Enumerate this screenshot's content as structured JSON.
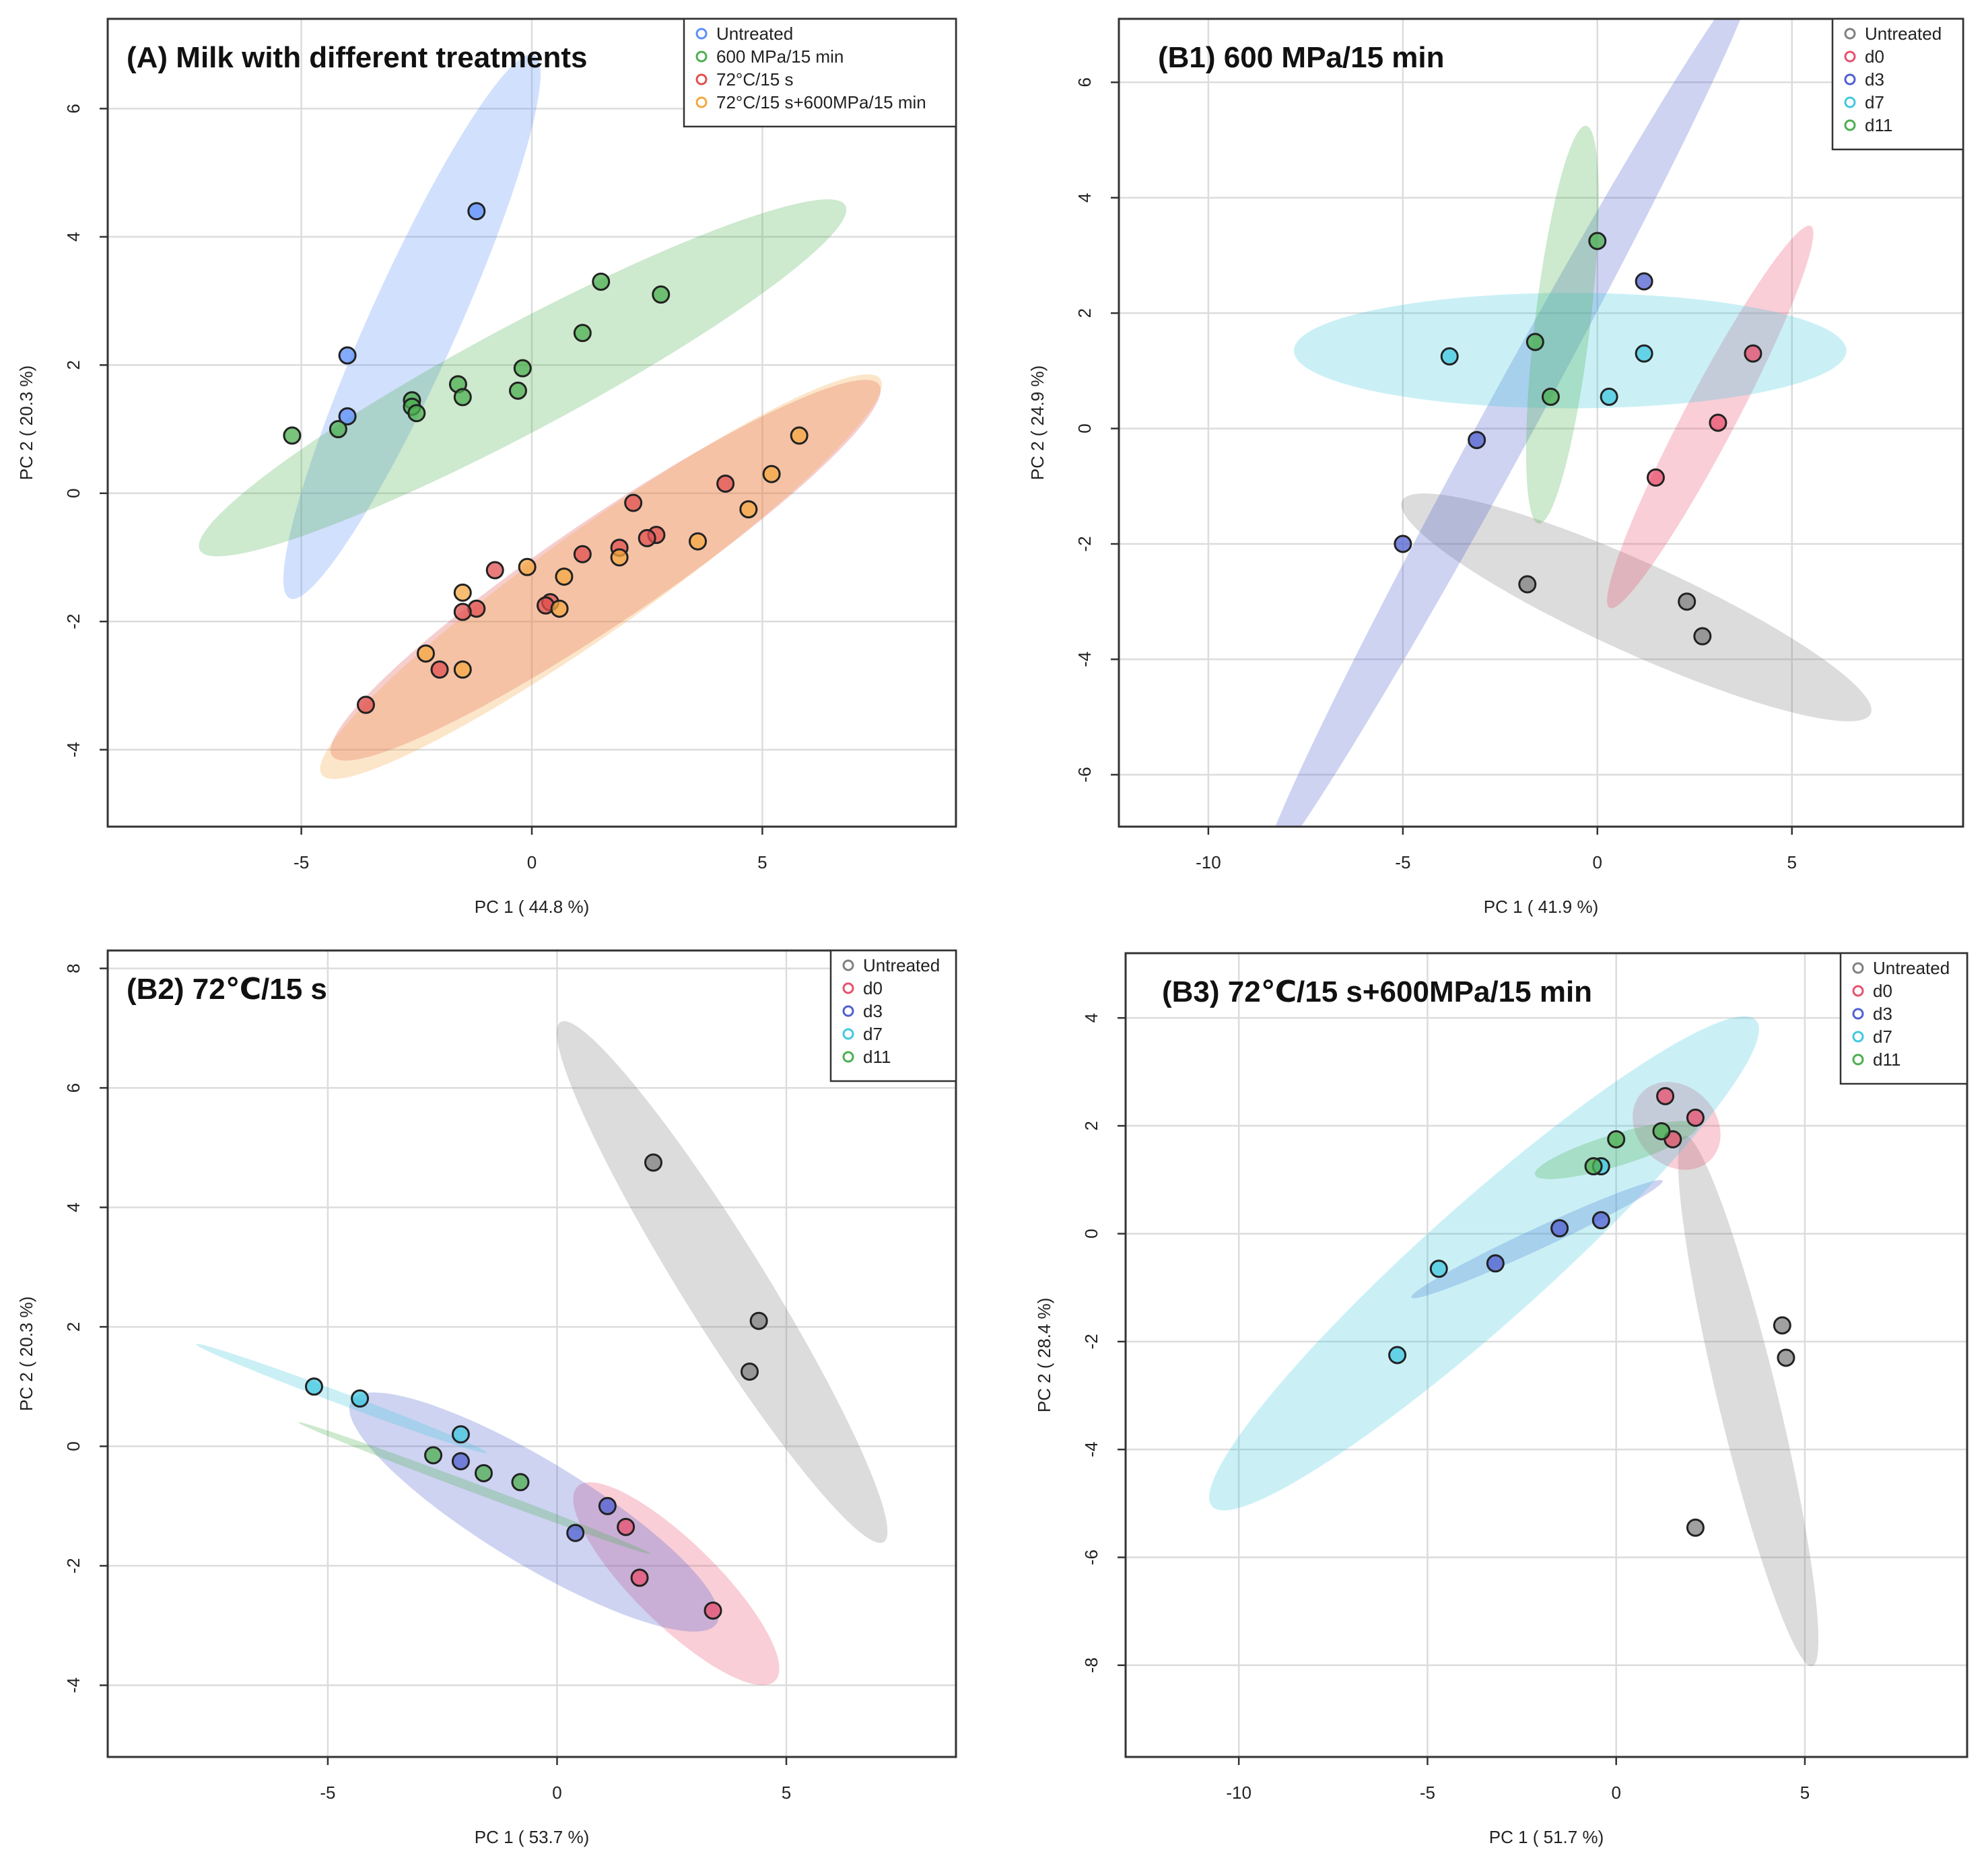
{
  "chart_data": [
    {
      "id": "A",
      "type": "scatter",
      "title": "(A) Milk with different treatments",
      "xlabel": "PC 1 ( 44.8 %)",
      "ylabel": "PC 2 ( 20.3 %)",
      "xlim": [
        -9.2,
        9.2
      ],
      "ylim": [
        -5.2,
        7.4
      ],
      "xticks": [
        -5,
        0,
        5
      ],
      "yticks": [
        -4,
        -2,
        0,
        2,
        4,
        6
      ],
      "grid": true,
      "legend_position": "top-right",
      "series": [
        {
          "name": "Untreated",
          "color": "#5b8ff9",
          "points": [
            [
              -1.2,
              4.4
            ],
            [
              -4.0,
              2.15
            ],
            [
              -4.0,
              1.2
            ]
          ],
          "ellipse": {
            "center": [
              -2.6,
              2.6
            ],
            "angle_deg": 58,
            "rx": 5.0,
            "ry": 0.85
          }
        },
        {
          "name": "600 MPa/15 min",
          "color": "#4caf50",
          "points": [
            [
              1.5,
              3.3
            ],
            [
              2.8,
              3.1
            ],
            [
              1.1,
              2.5
            ],
            [
              -0.2,
              1.95
            ],
            [
              -0.3,
              1.6
            ],
            [
              -1.6,
              1.7
            ],
            [
              -1.5,
              1.5
            ],
            [
              -2.6,
              1.45
            ],
            [
              -2.6,
              1.35
            ],
            [
              -2.5,
              1.25
            ],
            [
              -4.2,
              1.0
            ],
            [
              -5.2,
              0.9
            ]
          ],
          "ellipse": {
            "center": [
              -0.2,
              1.8
            ],
            "angle_deg": 21,
            "rx": 7.5,
            "ry": 0.85
          }
        },
        {
          "name": "72°C/15 s",
          "color": "#e05050",
          "points": [
            [
              4.2,
              0.15
            ],
            [
              2.2,
              -0.15
            ],
            [
              2.7,
              -0.65
            ],
            [
              2.5,
              -0.7
            ],
            [
              1.9,
              -0.85
            ],
            [
              1.1,
              -0.95
            ],
            [
              -0.8,
              -1.2
            ],
            [
              0.4,
              -1.7
            ],
            [
              0.3,
              -1.75
            ],
            [
              -1.2,
              -1.8
            ],
            [
              -1.5,
              -1.85
            ],
            [
              -2.0,
              -2.75
            ],
            [
              -3.6,
              -3.3
            ]
          ],
          "ellipse": {
            "center": [
              1.6,
              -1.2
            ],
            "angle_deg": 26,
            "rx": 6.6,
            "ry": 0.85
          }
        },
        {
          "name": "72°C/15 s+600MPa/15 min",
          "color": "#f4a742",
          "points": [
            [
              5.8,
              0.9
            ],
            [
              5.2,
              0.3
            ],
            [
              4.7,
              -0.25
            ],
            [
              3.6,
              -0.75
            ],
            [
              1.9,
              -1.0
            ],
            [
              -0.1,
              -1.15
            ],
            [
              0.7,
              -1.3
            ],
            [
              -1.5,
              -1.55
            ],
            [
              0.6,
              -1.8
            ],
            [
              -2.3,
              -2.5
            ],
            [
              -1.5,
              -2.75
            ]
          ],
          "ellipse": {
            "center": [
              1.5,
              -1.3
            ],
            "angle_deg": 27,
            "rx": 6.8,
            "ry": 0.85
          }
        }
      ]
    },
    {
      "id": "B1",
      "type": "scatter",
      "title": "(B1) 600  MPa/15 min",
      "xlabel": "PC 1 ( 41.9 %)",
      "ylabel": "PC 2 ( 24.9 %)",
      "xlim": [
        -12.3,
        9.4
      ],
      "ylim": [
        -6.9,
        7.1
      ],
      "xticks": [
        -10,
        -5,
        0,
        5
      ],
      "yticks": [
        -6,
        -4,
        -2,
        0,
        2,
        4,
        6
      ],
      "grid": true,
      "legend_position": "top-right",
      "series": [
        {
          "name": "Untreated",
          "color": "#808080",
          "points": [
            [
              -1.8,
              -2.7
            ],
            [
              2.3,
              -3.0
            ],
            [
              2.7,
              -3.6
            ]
          ],
          "ellipse": {
            "center": [
              1.0,
              -3.1
            ],
            "angle_deg": -17,
            "rx": 6.3,
            "ry": 0.8
          }
        },
        {
          "name": "d0",
          "color": "#e8506e",
          "points": [
            [
              4.0,
              1.3
            ],
            [
              3.1,
              0.1
            ],
            [
              1.5,
              -0.85
            ]
          ],
          "ellipse": {
            "center": [
              2.9,
              0.2
            ],
            "angle_deg": 52,
            "rx": 4.2,
            "ry": 0.55
          }
        },
        {
          "name": "d3",
          "color": "#5060d0",
          "points": [
            [
              1.2,
              2.55
            ],
            [
              -3.1,
              -0.2
            ],
            [
              -5.0,
              -2.0
            ]
          ],
          "ellipse": {
            "center": [
              -2.3,
              0.1
            ],
            "angle_deg": 51,
            "rx": 10.0,
            "ry": 0.55
          }
        },
        {
          "name": "d7",
          "color": "#40c8e0",
          "points": [
            [
              -3.8,
              1.25
            ],
            [
              1.2,
              1.3
            ],
            [
              0.3,
              0.55
            ]
          ],
          "ellipse": {
            "center": [
              -0.7,
              1.35
            ],
            "angle_deg": 0,
            "rx": 7.1,
            "ry": 1.0
          }
        },
        {
          "name": "d11",
          "color": "#4caf50",
          "points": [
            [
              0.0,
              3.25
            ],
            [
              -1.6,
              1.5
            ],
            [
              -1.2,
              0.55
            ]
          ],
          "ellipse": {
            "center": [
              -0.9,
              1.8
            ],
            "angle_deg": 80,
            "rx": 3.5,
            "ry": 0.7
          }
        }
      ]
    },
    {
      "id": "B2",
      "type": "scatter",
      "title": "(B2) 72℃/15  s",
      "xlabel": "PC 1 ( 53.7 %)",
      "ylabel": "PC 2 ( 20.3 %)",
      "xlim": [
        -9.8,
        8.7
      ],
      "ylim": [
        -5.2,
        8.3
      ],
      "xticks": [
        -5,
        0,
        5
      ],
      "yticks": [
        -4,
        -2,
        0,
        2,
        4,
        6,
        8
      ],
      "grid": true,
      "legend_position": "top-right",
      "series": [
        {
          "name": "Untreated",
          "color": "#808080",
          "points": [
            [
              2.1,
              4.75
            ],
            [
              4.4,
              2.1
            ],
            [
              4.2,
              1.25
            ]
          ],
          "ellipse": {
            "center": [
              3.6,
              2.75
            ],
            "angle_deg": -51,
            "rx": 5.6,
            "ry": 0.8
          }
        },
        {
          "name": "d0",
          "color": "#e8506e",
          "points": [
            [
              1.5,
              -1.35
            ],
            [
              1.8,
              -2.2
            ],
            [
              3.4,
              -2.75
            ]
          ],
          "ellipse": {
            "center": [
              2.6,
              -2.3
            ],
            "angle_deg": -37,
            "rx": 2.7,
            "ry": 0.75
          }
        },
        {
          "name": "d3",
          "color": "#5060d0",
          "points": [
            [
              -2.1,
              -0.25
            ],
            [
              1.1,
              -1.0
            ],
            [
              0.4,
              -1.45
            ]
          ],
          "ellipse": {
            "center": [
              -0.5,
              -1.1
            ],
            "angle_deg": -25,
            "rx": 4.4,
            "ry": 0.9
          }
        },
        {
          "name": "d7",
          "color": "#40c8e0",
          "points": [
            [
              -5.3,
              1.0
            ],
            [
              -4.3,
              0.8
            ],
            [
              -2.1,
              0.2
            ]
          ],
          "ellipse": {
            "center": [
              -4.7,
              0.8
            ],
            "angle_deg": -16,
            "rx": 3.3,
            "ry": 0.1
          }
        },
        {
          "name": "d11",
          "color": "#4caf50",
          "points": [
            [
              -2.7,
              -0.15
            ],
            [
              -1.6,
              -0.45
            ],
            [
              -0.8,
              -0.6
            ]
          ],
          "ellipse": {
            "center": [
              -1.8,
              -0.7
            ],
            "angle_deg": -16,
            "rx": 4.0,
            "ry": 0.08
          }
        }
      ]
    },
    {
      "id": "B3",
      "type": "scatter",
      "title": "(B3) 72℃/15  s+600MPa/15 min",
      "xlabel": "PC 1 ( 51.7 %)",
      "ylabel": "PC 2 ( 28.4 %)",
      "xlim": [
        -13.0,
        9.3
      ],
      "ylim": [
        -9.7,
        5.2
      ],
      "xticks": [
        -10,
        -5,
        0,
        5
      ],
      "yticks": [
        -8,
        -6,
        -4,
        -2,
        0,
        2,
        4
      ],
      "grid": true,
      "legend_position": "top-right",
      "series": [
        {
          "name": "Untreated",
          "color": "#808080",
          "points": [
            [
              4.4,
              -1.7
            ],
            [
              4.5,
              -2.3
            ],
            [
              2.1,
              -5.45
            ]
          ],
          "ellipse": {
            "center": [
              3.5,
              -3.1
            ],
            "angle_deg": -71,
            "rx": 5.2,
            "ry": 0.75
          }
        },
        {
          "name": "d0",
          "color": "#e8506e",
          "points": [
            [
              1.3,
              2.55
            ],
            [
              2.1,
              2.15
            ],
            [
              1.5,
              1.75
            ]
          ],
          "ellipse": {
            "center": [
              1.6,
              2.0
            ],
            "angle_deg": -35,
            "rx": 1.1,
            "ry": 0.8
          }
        },
        {
          "name": "d3",
          "color": "#5060d0",
          "points": [
            [
              -3.2,
              -0.55
            ],
            [
              -1.5,
              0.1
            ],
            [
              -0.4,
              0.25
            ]
          ],
          "ellipse": {
            "center": [
              -2.1,
              -0.1
            ],
            "angle_deg": 18,
            "rx": 3.5,
            "ry": 0.2
          }
        },
        {
          "name": "d7",
          "color": "#40c8e0",
          "points": [
            [
              -0.4,
              1.25
            ],
            [
              -4.7,
              -0.65
            ],
            [
              -5.8,
              -2.25
            ]
          ],
          "ellipse": {
            "center": [
              -3.5,
              -0.55
            ],
            "angle_deg": 32,
            "rx": 8.5,
            "ry": 1.2
          }
        },
        {
          "name": "d11",
          "color": "#4caf50",
          "points": [
            [
              0.0,
              1.75
            ],
            [
              1.2,
              1.9
            ],
            [
              -0.6,
              1.25
            ]
          ],
          "ellipse": {
            "center": [
              0.0,
              1.55
            ],
            "angle_deg": 12,
            "rx": 2.2,
            "ry": 0.3
          }
        }
      ]
    }
  ]
}
